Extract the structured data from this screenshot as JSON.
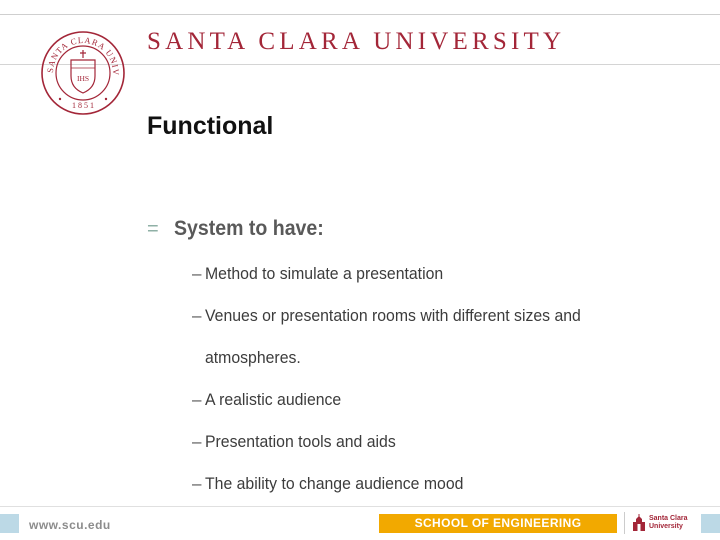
{
  "header": {
    "university_name": "SANTA CLARA UNIVERSITY",
    "seal_text_top": "SANTA CLARA UNIVERSITY",
    "seal_year": "1 8 5 1",
    "seal_monogram": "IHS"
  },
  "slide": {
    "title": "Functional",
    "main_bullet": {
      "marker": "=",
      "text": "System to have:"
    },
    "sub_bullets": [
      {
        "dash": "–",
        "text": "Method to simulate a presentation"
      },
      {
        "dash": "–",
        "text": "Venues or presentation rooms with different sizes and"
      },
      {
        "dash": "",
        "text": "atmospheres."
      },
      {
        "dash": "–",
        "text": "A realistic audience"
      },
      {
        "dash": "–",
        "text": "Presentation tools and aids"
      },
      {
        "dash": "–",
        "text": "The ability to change audience mood"
      }
    ]
  },
  "footer": {
    "url": "www.scu.edu",
    "school": "SCHOOL OF ENGINEERING",
    "logo_text": "Santa Clara\nUniversity"
  },
  "colors": {
    "brand_red": "#a32638",
    "accent_gold": "#f2a900",
    "accent_blue": "#bcd9e6",
    "bullet_green": "#8fb0a6"
  }
}
